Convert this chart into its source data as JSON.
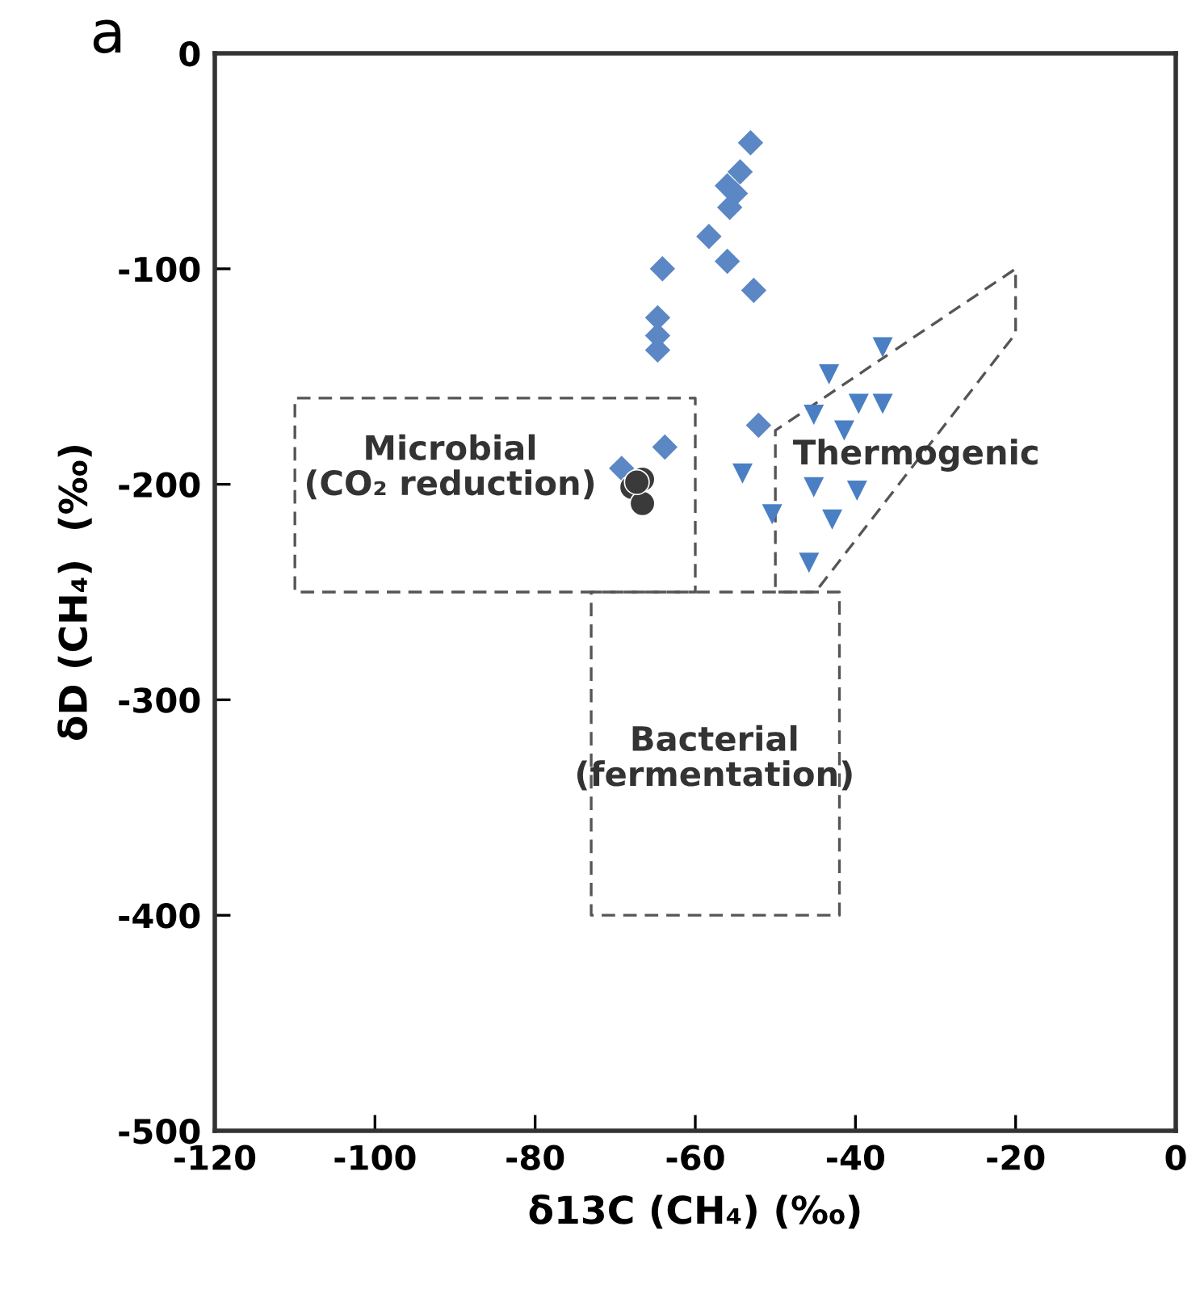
{
  "chart_data": {
    "type": "scatter",
    "title": "a",
    "xlabel": "δ13C (CH₄) (‰)",
    "ylabel": "δD (CH₄)  (‰)",
    "xlim": [
      -120,
      0
    ],
    "xticks": [
      -120,
      -100,
      -80,
      -60,
      -40,
      -20,
      0
    ],
    "ylim": [
      -500,
      0
    ],
    "yticks": [
      -500,
      -400,
      -300,
      -200,
      -100,
      0
    ],
    "grid": false,
    "legend": false,
    "series": [
      {
        "type": "line",
        "color": "#555555",
        "line_style": "dashed",
        "marker": "none",
        "x": [
          -85,
          -60,
          -60,
          -110,
          -110,
          -86
        ],
        "values": [
          -160,
          -160,
          -250,
          -250,
          -160,
          -160
        ]
      },
      {
        "type": "line",
        "color": "#555555",
        "line_style": "dashed",
        "marker": "none",
        "x": [
          -57,
          -42,
          -42,
          -73,
          -73,
          -58
        ],
        "values": [
          -250,
          -250,
          -400,
          -400,
          -250,
          -250
        ]
      },
      {
        "type": "line",
        "color": "#555555",
        "line_style": "dashed",
        "marker": "none",
        "x": [
          -35,
          -20,
          -20,
          -45,
          -50,
          -50,
          -36
        ],
        "values": [
          -137.5,
          -100,
          -130,
          -250,
          -250,
          -175,
          -140
        ]
      },
      {
        "color": "#5b87c5",
        "marker": "diamond",
        "x": [
          -53.1,
          -54.4,
          -56,
          -55,
          -55.7,
          -58.3,
          -56,
          -52.7,
          -64.1,
          -64.7,
          -64.7,
          -64.7,
          -52.1,
          -63.8,
          -69.2
        ],
        "values": [
          -41.5,
          -55,
          -61.5,
          -65,
          -71.5,
          -85,
          -96.5,
          -110,
          -100,
          -122.7,
          -131,
          -137.7,
          -172.6,
          -182.7,
          -192.6
        ]
      },
      {
        "color": "#3a3a3a",
        "marker": "circle",
        "x": [
          -66.6,
          -67.9,
          -66.6,
          -67.3
        ],
        "values": [
          -197.7,
          -201.4,
          -208.9,
          -199
        ]
      },
      {
        "color": "#4a7fc4",
        "marker": "triangle",
        "x": [
          -36.6,
          -43.3,
          -39.6,
          -36.6,
          -45.2,
          -41.4,
          -54.1,
          -45.2,
          -39.8,
          -50.4,
          -42.9,
          -45.8
        ],
        "values": [
          -136.4,
          -149,
          -162.7,
          -162.7,
          -167.7,
          -175,
          -195,
          -201.4,
          -203,
          -213.9,
          -216.4,
          -236.4
        ]
      }
    ],
    "annotations": [
      "Microbial\n(CO₂ reduction)",
      "Thermogenic",
      "Bacterial\n(fermentation)"
    ]
  }
}
